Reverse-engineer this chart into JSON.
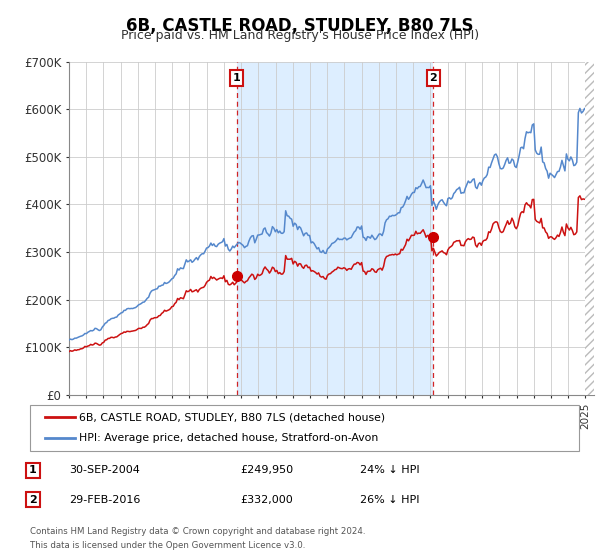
{
  "title": "6B, CASTLE ROAD, STUDLEY, B80 7LS",
  "subtitle": "Price paid vs. HM Land Registry's House Price Index (HPI)",
  "title_fontsize": 12,
  "subtitle_fontsize": 9,
  "ylim": [
    0,
    700000
  ],
  "xlim_start": 1995.0,
  "xlim_end": 2025.5,
  "hpi_color": "#5588cc",
  "price_color": "#cc1111",
  "marker_color": "#cc0000",
  "shade_color": "#ddeeff",
  "sale1_date_num": 2004.75,
  "sale1_price": 249950,
  "sale2_date_num": 2016.17,
  "sale2_price": 332000,
  "sale1_label": "1",
  "sale2_label": "2",
  "sale1_date_str": "30-SEP-2004",
  "sale2_date_str": "29-FEB-2016",
  "sale1_price_str": "£249,950",
  "sale2_price_str": "£332,000",
  "sale1_hpi_str": "24% ↓ HPI",
  "sale2_hpi_str": "26% ↓ HPI",
  "legend_label1": "6B, CASTLE ROAD, STUDLEY, B80 7LS (detached house)",
  "legend_label2": "HPI: Average price, detached house, Stratford-on-Avon",
  "footer1": "Contains HM Land Registry data © Crown copyright and database right 2024.",
  "footer2": "This data is licensed under the Open Government Licence v3.0.",
  "ytick_labels": [
    "£0",
    "£100K",
    "£200K",
    "£300K",
    "£400K",
    "£500K",
    "£600K",
    "£700K"
  ],
  "ytick_values": [
    0,
    100000,
    200000,
    300000,
    400000,
    500000,
    600000,
    700000
  ],
  "background_color": "#ffffff",
  "plot_bg_color": "#ffffff",
  "grid_color": "#cccccc"
}
